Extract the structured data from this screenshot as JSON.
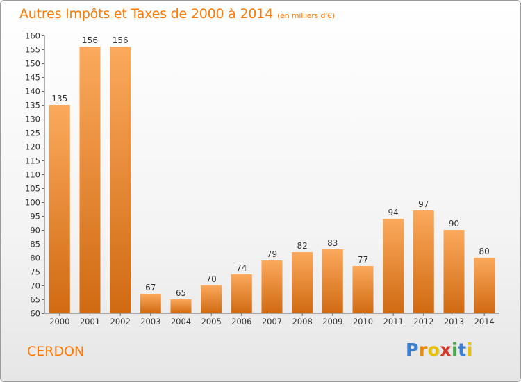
{
  "header": {
    "title": "Autres Impôts et Taxes de 2000 à 2014",
    "subtitle": "(en milliers d'€)"
  },
  "commune": "CERDON",
  "logo": {
    "letters": [
      "P",
      "r",
      "o",
      "x",
      "i",
      "t",
      "i"
    ],
    "colors": [
      "#3a7fd0",
      "#f08a00",
      "#e8c000",
      "#d23a2a",
      "#4aa84a",
      "#3a7fd0",
      "#e8c000"
    ]
  },
  "colors": {
    "accent": "#ff7900",
    "bar_light": "#fba95c",
    "bar_dark": "#d06a12"
  },
  "chart_data": {
    "type": "bar",
    "categories": [
      "2000",
      "2001",
      "2002",
      "2003",
      "2004",
      "2005",
      "2006",
      "2007",
      "2008",
      "2009",
      "2010",
      "2011",
      "2012",
      "2013",
      "2014"
    ],
    "values": [
      135,
      156,
      156,
      67,
      65,
      70,
      74,
      79,
      82,
      83,
      77,
      94,
      97,
      90,
      80
    ],
    "title": "Autres Impôts et Taxes de 2000 à 2014",
    "subtitle": "(en milliers d'€)",
    "ylim": [
      60,
      160
    ],
    "ytick_step": 5,
    "grid": false
  }
}
